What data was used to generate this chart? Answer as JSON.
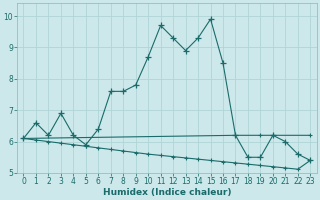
{
  "xlabel": "Humidex (Indice chaleur)",
  "background_color": "#cce8ea",
  "grid_color": "#b0d4d8",
  "line_color": "#1a6b6b",
  "xlim": [
    -0.5,
    23.5
  ],
  "ylim": [
    5.0,
    10.4
  ],
  "yticks": [
    5,
    6,
    7,
    8,
    9,
    10
  ],
  "xticks": [
    0,
    1,
    2,
    3,
    4,
    5,
    6,
    7,
    8,
    9,
    10,
    11,
    12,
    13,
    14,
    15,
    16,
    17,
    18,
    19,
    20,
    21,
    22,
    23
  ],
  "series1_x": [
    0,
    1,
    2,
    3,
    4,
    5,
    6,
    7,
    8,
    9,
    10,
    11,
    12,
    13,
    14,
    15,
    16,
    17,
    18,
    19,
    20,
    21,
    22,
    23
  ],
  "series1_y": [
    6.1,
    6.6,
    6.2,
    6.9,
    6.2,
    5.9,
    6.4,
    7.6,
    7.6,
    7.8,
    8.7,
    9.7,
    9.3,
    8.9,
    9.3,
    9.9,
    8.5,
    6.2,
    5.5,
    5.5,
    6.2,
    6.0,
    5.6,
    5.4
  ],
  "series2_x": [
    0,
    17,
    19,
    20,
    23
  ],
  "series2_y": [
    6.1,
    6.2,
    6.2,
    6.2,
    6.2
  ],
  "series3_x": [
    0,
    1,
    2,
    3,
    4,
    5,
    6,
    7,
    8,
    9,
    10,
    11,
    12,
    13,
    14,
    15,
    16,
    17,
    18,
    19,
    20,
    21,
    22,
    23
  ],
  "series3_y": [
    6.1,
    6.05,
    6.0,
    5.95,
    5.9,
    5.85,
    5.8,
    5.75,
    5.7,
    5.65,
    5.6,
    5.56,
    5.52,
    5.48,
    5.44,
    5.4,
    5.36,
    5.32,
    5.28,
    5.24,
    5.2,
    5.16,
    5.12,
    5.4
  ],
  "line_width": 0.8,
  "marker_size": 3.5
}
